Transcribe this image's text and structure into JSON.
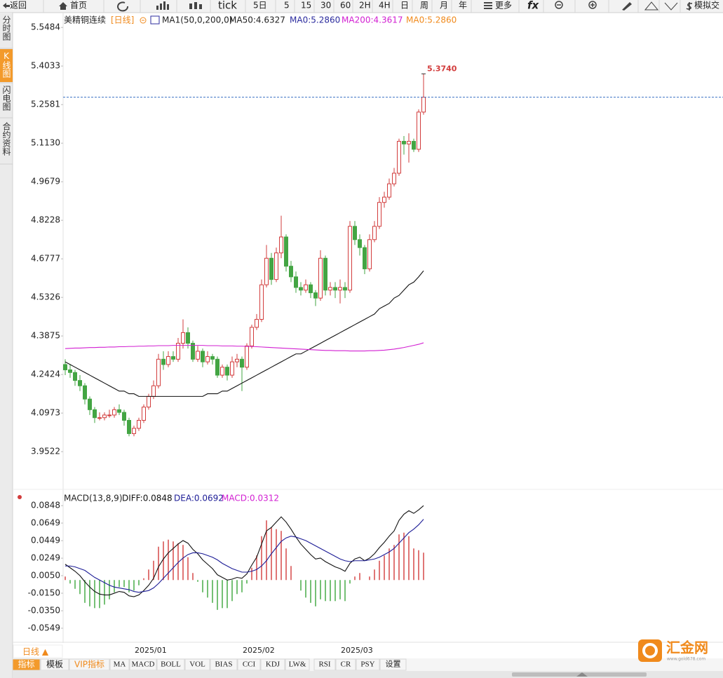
{
  "toolbar": [
    "返回",
    "首页",
    "tick",
    "5日",
    "5",
    "15",
    "30",
    "60",
    "2H",
    "4H",
    "日",
    "周",
    "月",
    "年",
    "更多",
    "fx",
    "模拟交"
  ],
  "sidebar": [
    "分时图",
    "K线图",
    "闪电图",
    "合约资料"
  ],
  "bottom": {
    "period": "日线 ▲",
    "tabs": [
      "指标",
      "模板",
      "VIP指标",
      "MA",
      "MACD",
      "BOLL",
      "VOL",
      "BIAS",
      "CCI",
      "KDJ",
      "LW&",
      "RSI",
      "CR",
      "PSY",
      "设置"
    ]
  },
  "logo": {
    "name": "汇金网",
    "url": "www.gold678.com"
  },
  "chart_data": [
    {
      "type": "candlestick",
      "title": "美精铜连续",
      "period": "[日线]",
      "legend": [
        {
          "text": "MA1(50,0,200,0)",
          "color": "#222222"
        },
        {
          "text": "MA50:4.6327",
          "color": "#222222"
        },
        {
          "text": "MA0:5.2860",
          "color": "#2b2b9e"
        },
        {
          "text": "MA200:4.3617",
          "color": "#d21fd2"
        },
        {
          "text": "MA0:5.2860",
          "color": "#f08a1c"
        }
      ],
      "peak_label": "5.3740",
      "up_color": "#d23c3c",
      "down_color": "#43a543",
      "categories": [
        null,
        null,
        null,
        null,
        null,
        null,
        null,
        null,
        null,
        null,
        null,
        null,
        null,
        null,
        "2025/01",
        null,
        null,
        null,
        null,
        null,
        null,
        null,
        null,
        null,
        null,
        null,
        null,
        null,
        null,
        null,
        null,
        null,
        null,
        null,
        null,
        null,
        "2025/02",
        null,
        null,
        null,
        null,
        null,
        null,
        null,
        null,
        null,
        null,
        null,
        null,
        null,
        null,
        null,
        null,
        null,
        null,
        null,
        "2025/03",
        null,
        null,
        null,
        null,
        null,
        null,
        null,
        null,
        null,
        null,
        null,
        null,
        null,
        null,
        null,
        null,
        null
      ],
      "open": [
        4.28,
        4.26,
        4.25,
        4.22,
        4.2,
        4.15,
        4.11,
        4.08,
        4.08,
        4.09,
        4.09,
        4.11,
        4.1,
        4.07,
        4.02,
        4.04,
        4.07,
        4.12,
        4.16,
        4.2,
        4.3,
        4.28,
        4.31,
        4.3,
        4.36,
        4.4,
        4.36,
        4.3,
        4.33,
        4.29,
        4.31,
        4.3,
        4.24,
        4.27,
        4.24,
        4.29,
        4.3,
        4.27,
        4.35,
        4.42,
        4.45,
        4.58,
        4.68,
        4.6,
        4.7,
        4.76,
        4.65,
        4.61,
        4.57,
        4.56,
        4.58,
        4.55,
        4.53,
        4.68,
        4.56,
        4.57,
        4.56,
        4.57,
        4.56,
        4.8,
        4.75,
        4.72,
        4.64,
        4.75,
        4.8,
        4.89,
        4.91,
        4.96,
        5.0,
        5.12,
        5.11,
        5.12,
        5.09,
        5.23
      ],
      "high": [
        4.3,
        4.28,
        4.26,
        4.24,
        4.21,
        4.16,
        4.12,
        4.1,
        4.1,
        4.11,
        4.12,
        4.13,
        4.11,
        4.08,
        4.05,
        4.08,
        4.13,
        4.17,
        4.22,
        4.32,
        4.33,
        4.33,
        4.33,
        4.38,
        4.45,
        4.42,
        4.37,
        4.35,
        4.34,
        4.33,
        4.32,
        4.31,
        4.28,
        4.28,
        4.31,
        4.32,
        4.31,
        4.36,
        4.43,
        4.47,
        4.6,
        4.73,
        4.7,
        4.72,
        4.84,
        4.77,
        4.67,
        4.63,
        4.59,
        4.6,
        4.59,
        4.56,
        4.71,
        4.69,
        4.59,
        4.59,
        4.6,
        4.59,
        4.82,
        4.82,
        4.77,
        4.73,
        4.77,
        4.82,
        4.91,
        4.93,
        4.98,
        5.02,
        5.13,
        5.14,
        5.15,
        5.13,
        5.24,
        5.374
      ],
      "low": [
        4.24,
        4.23,
        4.2,
        4.18,
        4.13,
        4.09,
        4.06,
        4.07,
        4.07,
        4.08,
        4.08,
        4.09,
        4.05,
        4.01,
        4.01,
        4.03,
        4.06,
        4.11,
        4.15,
        4.19,
        4.26,
        4.27,
        4.29,
        4.29,
        4.34,
        4.34,
        4.29,
        4.29,
        4.27,
        4.28,
        4.28,
        4.23,
        4.23,
        4.22,
        4.23,
        4.27,
        4.18,
        4.26,
        4.34,
        4.41,
        4.44,
        4.57,
        4.58,
        4.59,
        4.68,
        4.63,
        4.59,
        4.55,
        4.54,
        4.55,
        4.53,
        4.5,
        4.52,
        4.54,
        4.54,
        4.53,
        4.51,
        4.53,
        4.55,
        4.73,
        4.69,
        4.62,
        4.63,
        4.74,
        4.79,
        4.87,
        4.9,
        4.95,
        4.99,
        5.07,
        5.04,
        5.08,
        5.08,
        5.22
      ],
      "close": [
        4.26,
        4.25,
        4.22,
        4.2,
        4.15,
        4.11,
        4.08,
        4.08,
        4.09,
        4.09,
        4.11,
        4.1,
        4.07,
        4.02,
        4.04,
        4.07,
        4.12,
        4.16,
        4.2,
        4.3,
        4.28,
        4.31,
        4.3,
        4.36,
        4.4,
        4.36,
        4.3,
        4.33,
        4.29,
        4.31,
        4.3,
        4.24,
        4.27,
        4.24,
        4.29,
        4.3,
        4.27,
        4.35,
        4.42,
        4.45,
        4.58,
        4.68,
        4.6,
        4.7,
        4.76,
        4.65,
        4.61,
        4.57,
        4.56,
        4.58,
        4.55,
        4.53,
        4.68,
        4.56,
        4.57,
        4.56,
        4.57,
        4.56,
        4.8,
        4.75,
        4.72,
        4.64,
        4.75,
        4.8,
        4.89,
        4.91,
        4.96,
        5.0,
        5.12,
        5.11,
        5.12,
        5.09,
        5.23,
        5.286
      ],
      "series": [
        {
          "color": "#111111",
          "values": [
            4.29,
            4.28,
            4.27,
            4.26,
            4.25,
            4.24,
            4.23,
            4.22,
            4.21,
            4.2,
            4.19,
            4.18,
            4.18,
            4.17,
            4.17,
            4.16,
            4.16,
            4.16,
            4.16,
            4.16,
            4.16,
            4.16,
            4.16,
            4.16,
            4.16,
            4.16,
            4.16,
            4.16,
            4.16,
            4.17,
            4.17,
            4.17,
            4.18,
            4.18,
            4.19,
            4.2,
            4.21,
            4.22,
            4.23,
            4.24,
            4.25,
            4.26,
            4.27,
            4.28,
            4.29,
            4.3,
            4.31,
            4.32,
            4.32,
            4.33,
            4.34,
            4.35,
            4.36,
            4.37,
            4.38,
            4.39,
            4.4,
            4.41,
            4.42,
            4.43,
            4.44,
            4.45,
            4.46,
            4.47,
            4.49,
            4.5,
            4.51,
            4.53,
            4.54,
            4.56,
            4.58,
            4.59,
            4.61,
            4.6327
          ]
        },
        {
          "color": "#d21fd2",
          "values": [
            4.34,
            4.341,
            4.342,
            4.342,
            4.343,
            4.344,
            4.344,
            4.345,
            4.345,
            4.346,
            4.346,
            4.347,
            4.347,
            4.348,
            4.348,
            4.349,
            4.349,
            4.35,
            4.35,
            4.351,
            4.351,
            4.351,
            4.352,
            4.352,
            4.352,
            4.352,
            4.352,
            4.352,
            4.352,
            4.351,
            4.351,
            4.351,
            4.35,
            4.35,
            4.35,
            4.349,
            4.349,
            4.348,
            4.348,
            4.347,
            4.346,
            4.345,
            4.344,
            4.343,
            4.342,
            4.341,
            4.34,
            4.339,
            4.338,
            4.337,
            4.336,
            4.335,
            4.334,
            4.333,
            4.333,
            4.332,
            4.332,
            4.332,
            4.331,
            4.331,
            4.331,
            4.331,
            4.332,
            4.332,
            4.333,
            4.334,
            4.336,
            4.338,
            4.341,
            4.344,
            4.348,
            4.352,
            4.356,
            4.3617
          ]
        }
      ],
      "ylim": [
        3.818,
        5.599
      ],
      "yticks": [
        5.5484,
        5.4033,
        5.2581,
        {
          "value": 5.113,
          "label": "5.1130"
        },
        4.9679,
        4.8228,
        4.6777,
        4.5326,
        4.3875,
        4.2424,
        4.0973,
        3.9522
      ],
      "grid": false
    },
    {
      "type": "macd",
      "title": "MACD(13,8,9)",
      "series": [
        {
          "name": "DIFF:0.0848",
          "color": "#111111",
          "values": [
            0.018,
            0.014,
            0.01,
            0.005,
            -0.002,
            -0.008,
            -0.013,
            -0.016,
            -0.017,
            -0.017,
            -0.015,
            -0.013,
            -0.014,
            -0.018,
            -0.019,
            -0.017,
            -0.012,
            -0.006,
            0.002,
            0.015,
            0.024,
            0.031,
            0.036,
            0.041,
            0.045,
            0.042,
            0.035,
            0.03,
            0.023,
            0.018,
            0.013,
            0.006,
            0.003,
            0.0,
            0.001,
            0.003,
            0.002,
            0.007,
            0.017,
            0.026,
            0.041,
            0.056,
            0.06,
            0.066,
            0.072,
            0.066,
            0.058,
            0.049,
            0.041,
            0.035,
            0.029,
            0.024,
            0.025,
            0.021,
            0.018,
            0.015,
            0.013,
            0.01,
            0.019,
            0.024,
            0.026,
            0.022,
            0.025,
            0.03,
            0.037,
            0.043,
            0.05,
            0.056,
            0.068,
            0.075,
            0.079,
            0.076,
            0.08,
            0.0848
          ]
        },
        {
          "name": "DEA:0.0692",
          "color": "#1c1c96",
          "values": [
            0.016,
            0.016,
            0.015,
            0.013,
            0.011,
            0.007,
            0.003,
            0.0,
            -0.003,
            -0.006,
            -0.008,
            -0.009,
            -0.01,
            -0.011,
            -0.013,
            -0.014,
            -0.013,
            -0.012,
            -0.009,
            -0.004,
            0.002,
            0.008,
            0.014,
            0.02,
            0.025,
            0.029,
            0.031,
            0.031,
            0.03,
            0.028,
            0.026,
            0.023,
            0.019,
            0.016,
            0.013,
            0.011,
            0.009,
            0.009,
            0.01,
            0.012,
            0.016,
            0.022,
            0.03,
            0.037,
            0.044,
            0.048,
            0.05,
            0.049,
            0.047,
            0.045,
            0.042,
            0.039,
            0.036,
            0.033,
            0.03,
            0.027,
            0.024,
            0.022,
            0.021,
            0.022,
            0.022,
            0.022,
            0.023,
            0.024,
            0.026,
            0.029,
            0.032,
            0.036,
            0.042,
            0.048,
            0.054,
            0.058,
            0.063,
            0.0692
          ]
        },
        {
          "name": "MACD:0.0312",
          "color": "#d21fd2",
          "up_color": "#d23c3c",
          "down_color": "#3aa63a",
          "bars": true,
          "values": [
            0.004,
            -0.004,
            -0.01,
            -0.016,
            -0.026,
            -0.03,
            -0.032,
            -0.032,
            -0.028,
            -0.022,
            -0.014,
            -0.008,
            -0.008,
            -0.014,
            -0.012,
            -0.006,
            0.002,
            0.012,
            0.022,
            0.038,
            0.044,
            0.046,
            0.044,
            0.042,
            0.04,
            0.026,
            0.008,
            -0.002,
            -0.014,
            -0.02,
            -0.026,
            -0.034,
            -0.032,
            -0.032,
            -0.024,
            -0.016,
            -0.014,
            -0.004,
            0.014,
            0.028,
            0.05,
            0.068,
            0.06,
            0.058,
            0.056,
            0.036,
            0.016,
            0.0,
            -0.012,
            -0.02,
            -0.026,
            -0.03,
            -0.022,
            -0.024,
            -0.024,
            -0.024,
            -0.022,
            -0.024,
            -0.004,
            0.004,
            0.008,
            0.0,
            0.004,
            0.012,
            0.022,
            0.028,
            0.036,
            0.04,
            0.052,
            0.054,
            0.05,
            0.036,
            0.034,
            0.0312
          ]
        }
      ],
      "ylim": [
        -0.0677,
        0.1017
      ],
      "yticks": [
        0.0848,
        0.0649,
        0.0449,
        0.0249,
        {
          "value": 0.005,
          "label": "0.0050"
        },
        {
          "value": -0.015,
          "label": "-0.0150"
        },
        {
          "value": -0.035,
          "label": "-0.0350"
        },
        -0.0549
      ],
      "grid": false
    }
  ]
}
